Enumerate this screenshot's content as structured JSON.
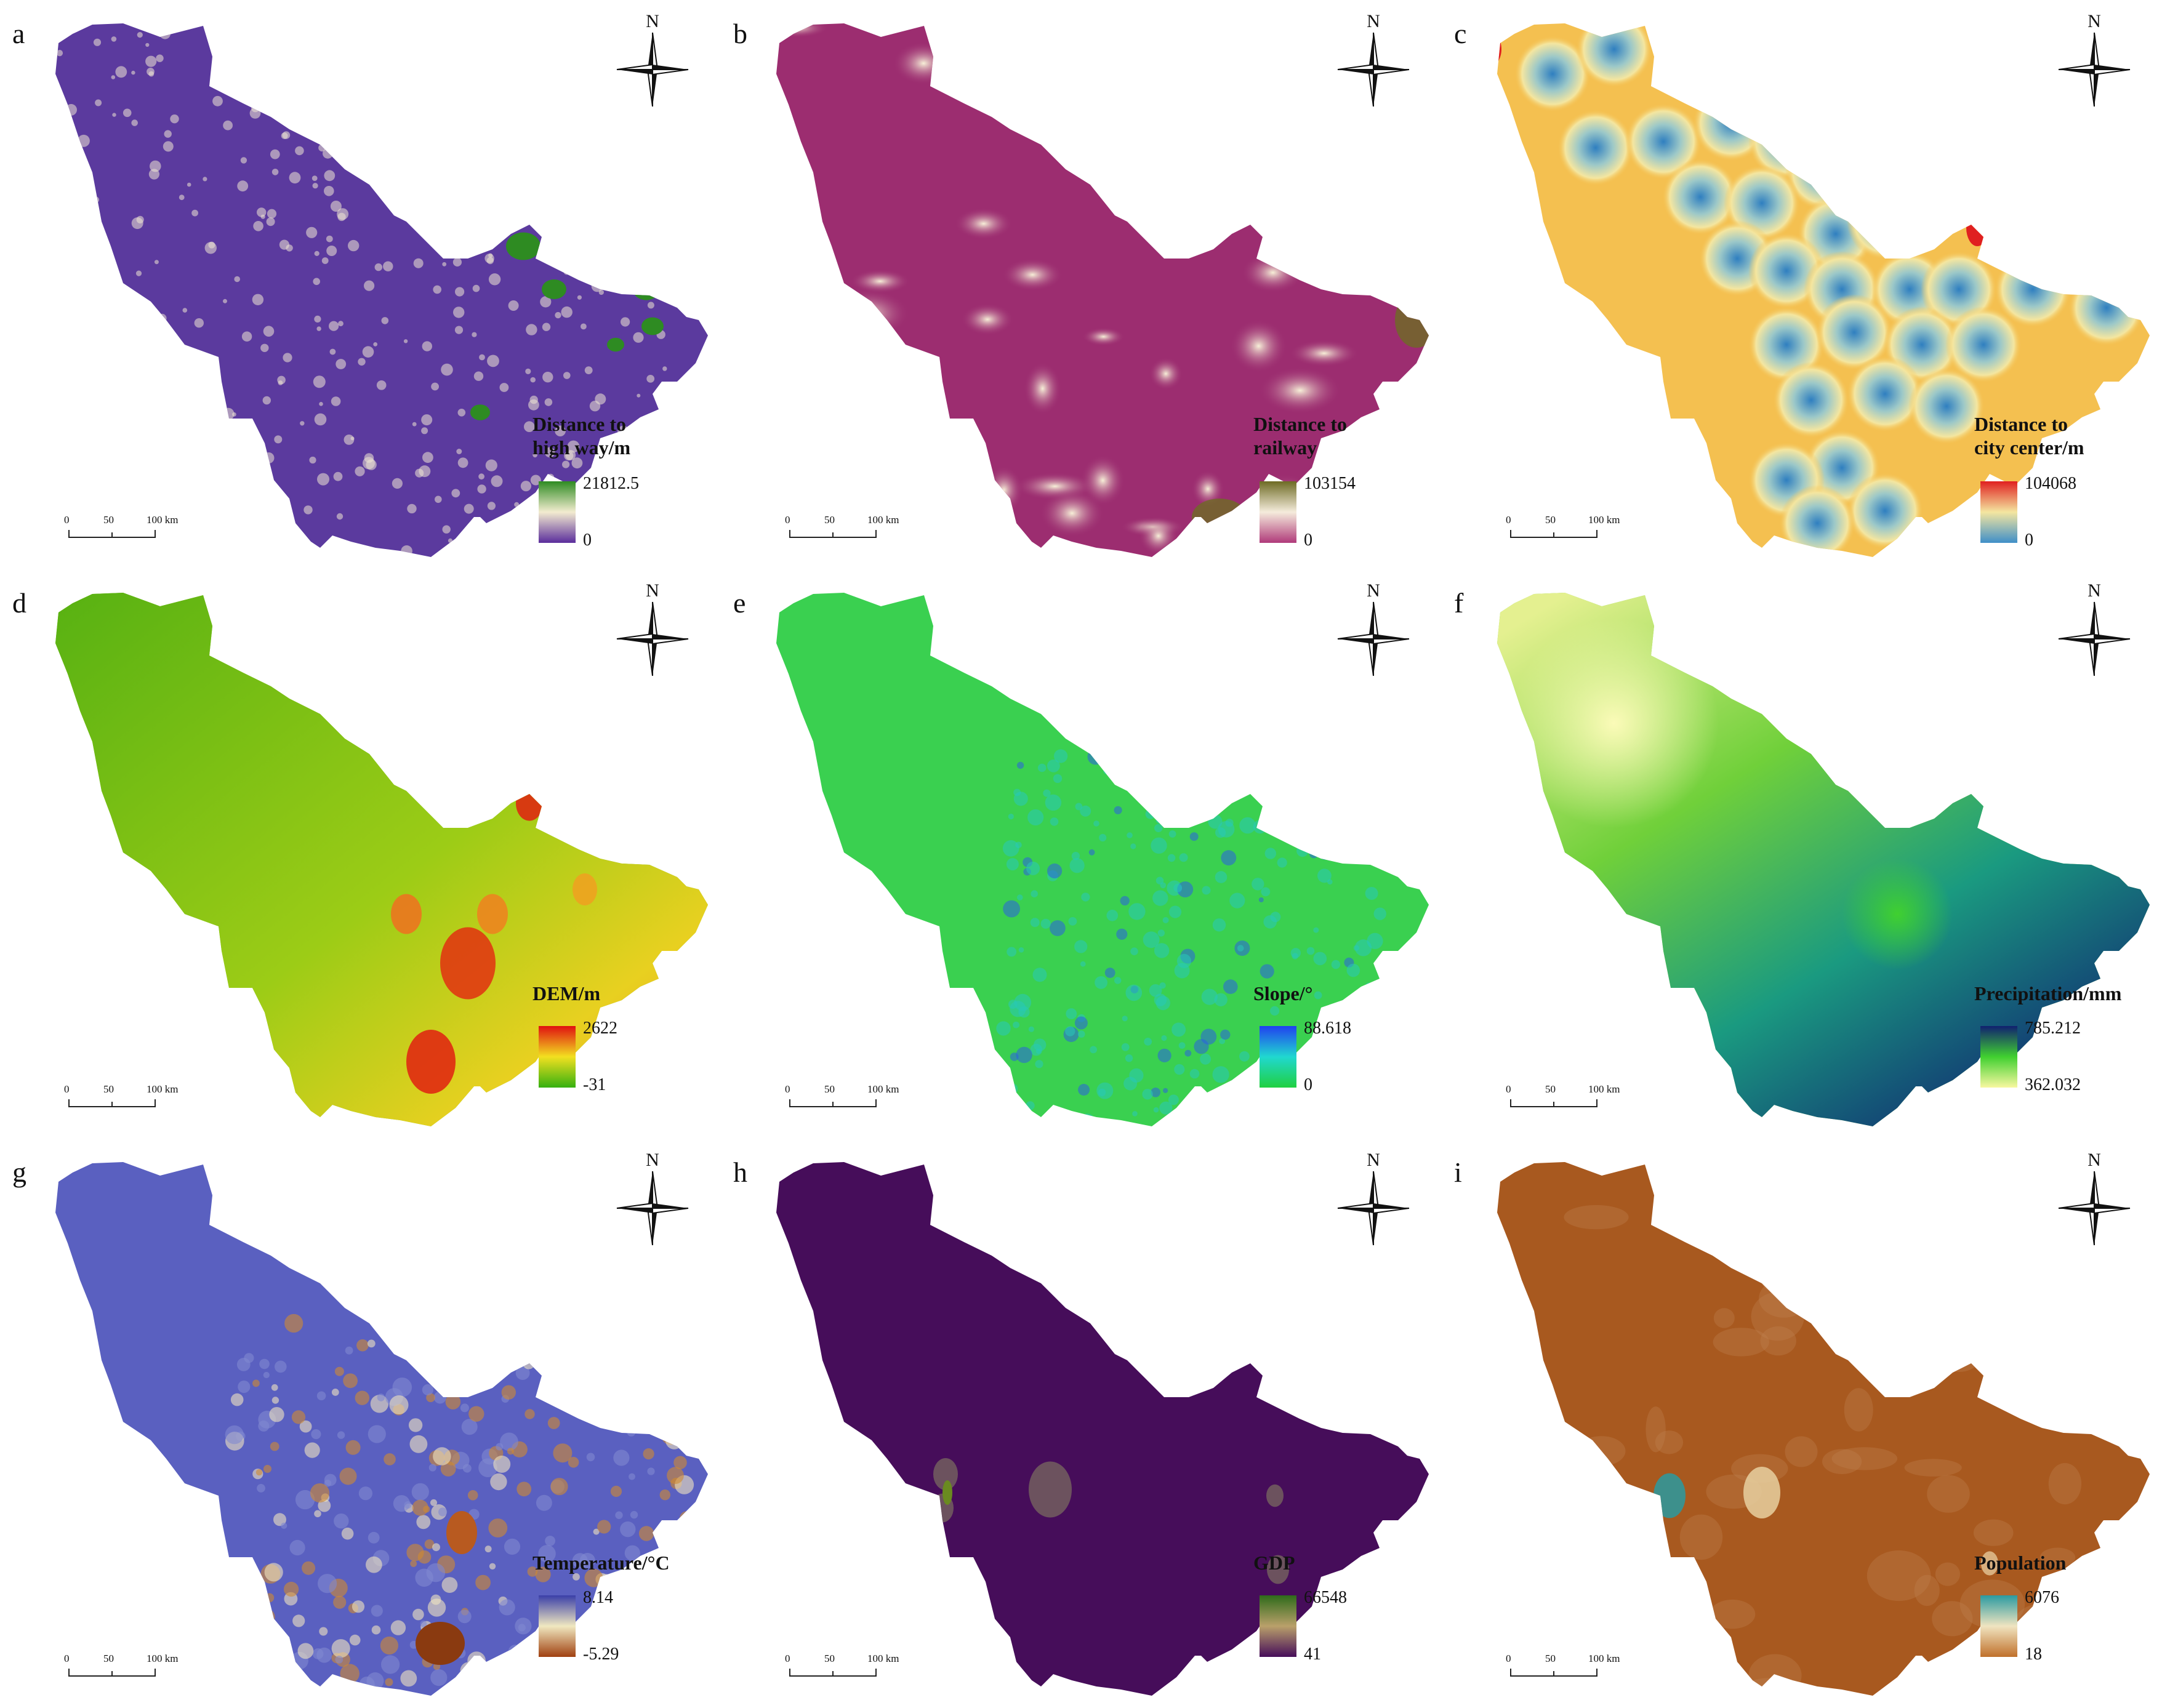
{
  "panels": [
    {
      "letter": "a",
      "legend_title": "Distance to\nhigh way/m",
      "max": "21812.5",
      "min": "0",
      "ramp": [
        "#5a2d9c",
        "#f3ecd0",
        "#2e8b22"
      ],
      "base_color": "#5b3a9e"
    },
    {
      "letter": "b",
      "legend_title": "Distance to\nrailway",
      "max": "103154",
      "min": "0",
      "ramp": [
        "#b03a7a",
        "#f5ecdc",
        "#6e6b24"
      ],
      "base_color": "#9c2d70"
    },
    {
      "letter": "c",
      "legend_title": "Distance to\ncity center/m",
      "max": "104068",
      "min": "0",
      "ramp": [
        "#3f8fc8",
        "#f4e6a0",
        "#e02020"
      ],
      "base_color": "#f4c050"
    },
    {
      "letter": "d",
      "legend_title": "DEM/m",
      "max": "2622",
      "min": "-31",
      "ramp": [
        "#35b010",
        "#f2e020",
        "#e01010"
      ],
      "base_color": "#7bc012"
    },
    {
      "letter": "e",
      "legend_title": "Slope/°",
      "max": "88.618",
      "min": "0",
      "ramp": [
        "#20d040",
        "#20d8d0",
        "#2040f0"
      ],
      "base_color": "#3ad050"
    },
    {
      "letter": "f",
      "legend_title": "Precipitation/mm",
      "max": "785.212",
      "min": "362.032",
      "ramp": [
        "#f8f8a0",
        "#40d030",
        "#102070"
      ],
      "base_color": "#7ed83a"
    },
    {
      "letter": "g",
      "legend_title": "Temperature/°C",
      "max": "8.14",
      "min": "-5.29",
      "ramp": [
        "#a04010",
        "#f0e8c0",
        "#3a3fa8"
      ],
      "base_color": "#5a60c0"
    },
    {
      "letter": "h",
      "legend_title": "GDP",
      "max": "66548",
      "min": "41",
      "ramp": [
        "#460d5a",
        "#b9a06a",
        "#2e6a1a"
      ],
      "base_color": "#460d5a"
    },
    {
      "letter": "i",
      "legend_title": "Population",
      "max": "6076",
      "min": "18",
      "ramp": [
        "#c0702a",
        "#f0e4c0",
        "#2a9aa0"
      ],
      "base_color": "#a8591f"
    }
  ],
  "north_label": "N",
  "scale": {
    "t0": "0",
    "t1": "50",
    "t2": "100 km"
  }
}
